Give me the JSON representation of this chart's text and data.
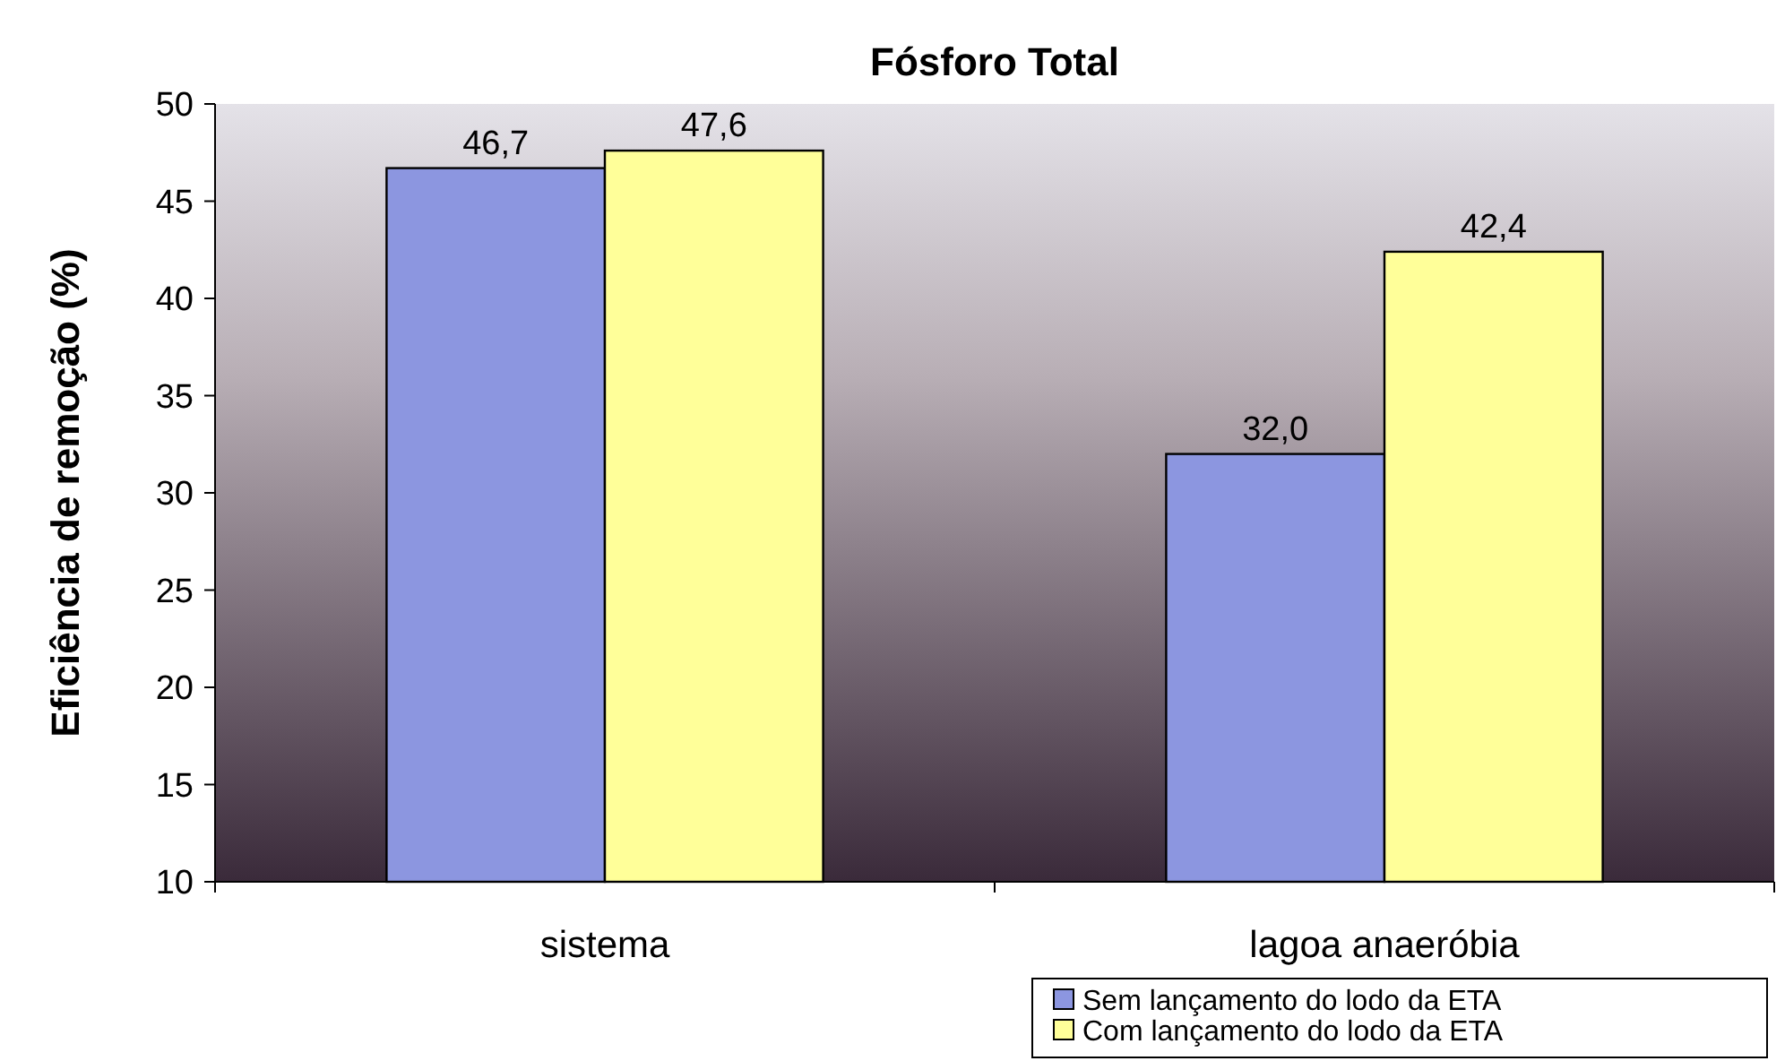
{
  "chart_data": {
    "type": "bar",
    "title": "Fósforo Total",
    "ylabel": "Eficiência de remoção (%)",
    "categories": [
      "sistema",
      "lagoa anaeróbia"
    ],
    "series": [
      {
        "name": "Sem lançamento do lodo da ETA",
        "color": "#8c96e0",
        "values": [
          46.7,
          32.0
        ],
        "value_labels": [
          "46,7",
          "32,0"
        ]
      },
      {
        "name": "Com lançamento do lodo da ETA",
        "color": "#ffff99",
        "values": [
          47.6,
          42.4
        ],
        "value_labels": [
          "47,6",
          "42,4"
        ]
      }
    ],
    "ylim": [
      10,
      50
    ],
    "yticks": [
      10,
      15,
      20,
      25,
      30,
      35,
      40,
      45,
      50
    ],
    "grid": false,
    "legend": "bottom right"
  }
}
